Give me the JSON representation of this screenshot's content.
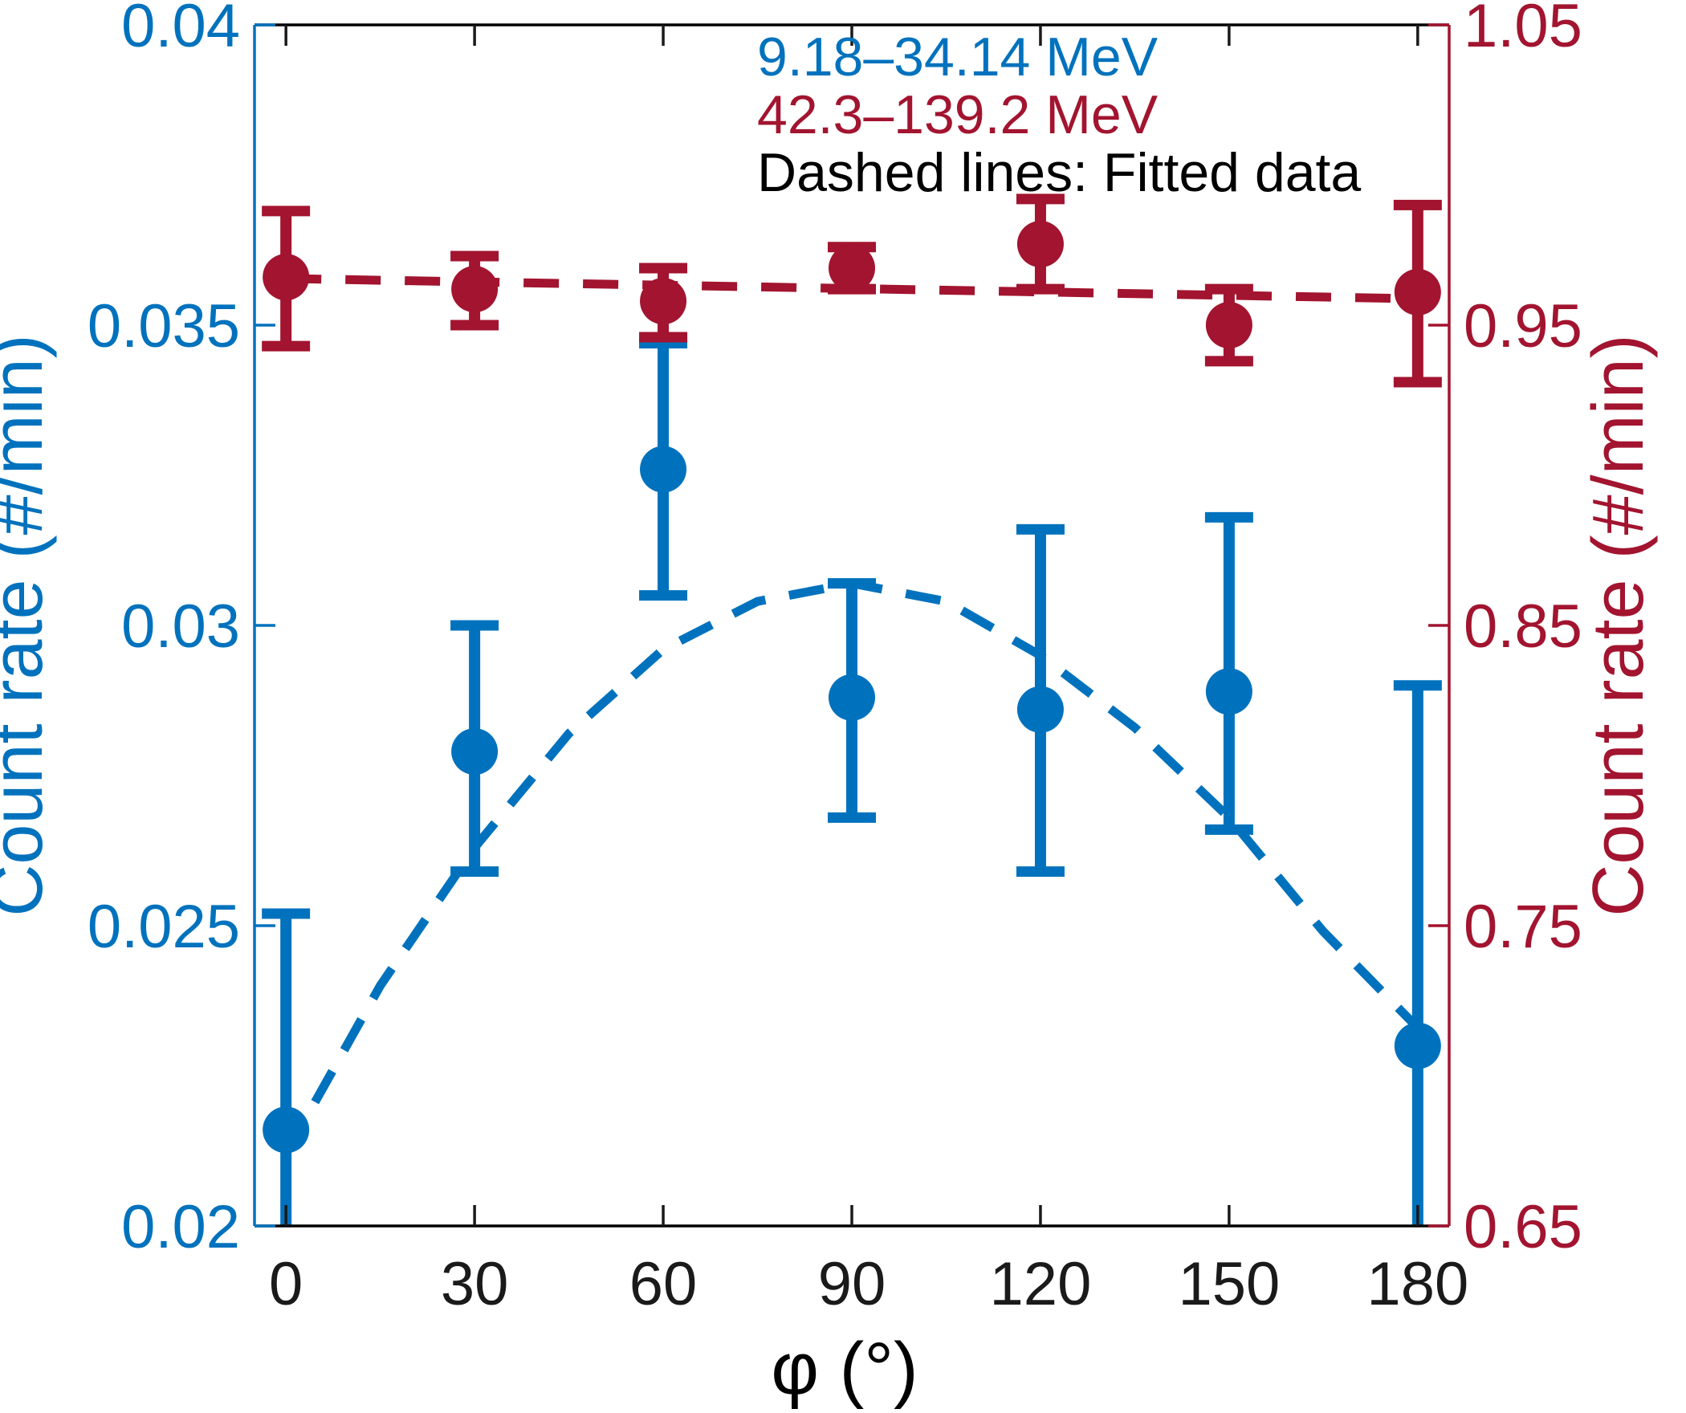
{
  "figure": {
    "background": "#ffffff",
    "description": "Dual-axis errorbar plot of count rate versus azimuthal angle phi"
  },
  "chart_data": {
    "type": "scatter",
    "subtype": "errorbar-dual-axis",
    "grid": false,
    "x_axis": {
      "label": "φ (°)",
      "lim": [
        -5,
        185
      ],
      "ticks": [
        0,
        30,
        60,
        90,
        120,
        150,
        180
      ],
      "tick_labels": [
        "0",
        "30",
        "60",
        "90",
        "120",
        "150",
        "180"
      ],
      "color": "#1a1a1a"
    },
    "left_axis": {
      "label": "Count rate (#/min)",
      "color": "#0072BD",
      "lim": [
        0.02,
        0.04
      ],
      "ticks": [
        0.02,
        0.025,
        0.03,
        0.035,
        0.04
      ],
      "tick_labels": [
        "0.02",
        "0.025",
        "0.03",
        "0.035",
        "0.04"
      ]
    },
    "right_axis": {
      "label": "Count rate (#/min)",
      "color": "#A2142F",
      "lim": [
        0.65,
        1.05
      ],
      "ticks": [
        0.65,
        0.75,
        0.85,
        0.95,
        1.05
      ],
      "tick_labels": [
        "0.65",
        "0.75",
        "0.85",
        "0.95",
        "1.05"
      ]
    },
    "legend": {
      "position": "top-center-inside",
      "entries": [
        {
          "text": "9.18–34.14 MeV",
          "color": "#0072BD"
        },
        {
          "text": "42.3–139.2 MeV",
          "color": "#A2142F"
        },
        {
          "text": "Dashed lines: Fitted data",
          "color": "#000000"
        }
      ]
    },
    "series": [
      {
        "name": "9.18–34.14 MeV",
        "axis": "left",
        "color": "#0072BD",
        "marker": "circle",
        "points": [
          {
            "x": 0,
            "y": 0.0216,
            "y_upper": 0.0252,
            "y_lower": null
          },
          {
            "x": 30,
            "y": 0.0279,
            "y_upper": 0.03,
            "y_lower": 0.0259
          },
          {
            "x": 60,
            "y": 0.0326,
            "y_upper": 0.0347,
            "y_lower": 0.0305
          },
          {
            "x": 90,
            "y": 0.0288,
            "y_upper": 0.0307,
            "y_lower": 0.0268
          },
          {
            "x": 120,
            "y": 0.0286,
            "y_upper": 0.0316,
            "y_lower": 0.0259
          },
          {
            "x": 150,
            "y": 0.0289,
            "y_upper": 0.0318,
            "y_lower": 0.0266
          },
          {
            "x": 180,
            "y": 0.023,
            "y_upper": 0.029,
            "y_lower": null
          }
        ]
      },
      {
        "name": "42.3–139.2 MeV",
        "axis": "right",
        "color": "#A2142F",
        "marker": "circle",
        "points": [
          {
            "x": 0,
            "y": 0.966,
            "y_upper": 0.988,
            "y_lower": 0.943
          },
          {
            "x": 30,
            "y": 0.962,
            "y_upper": 0.973,
            "y_lower": 0.95
          },
          {
            "x": 60,
            "y": 0.958,
            "y_upper": 0.969,
            "y_lower": 0.946
          },
          {
            "x": 90,
            "y": 0.969,
            "y_upper": 0.976,
            "y_lower": 0.962
          },
          {
            "x": 120,
            "y": 0.977,
            "y_upper": 0.992,
            "y_lower": 0.962
          },
          {
            "x": 150,
            "y": 0.95,
            "y_upper": 0.962,
            "y_lower": 0.938
          },
          {
            "x": 180,
            "y": 0.961,
            "y_upper": 0.99,
            "y_lower": 0.931
          }
        ]
      }
    ],
    "fits": [
      {
        "name": "fit 9.18–34.14 MeV",
        "axis": "left",
        "color": "#0072BD",
        "style": "dashed",
        "points": [
          [
            0,
            0.0212
          ],
          [
            15,
            0.024
          ],
          [
            30,
            0.0263
          ],
          [
            45,
            0.0282
          ],
          [
            60,
            0.0296
          ],
          [
            75,
            0.0304
          ],
          [
            90,
            0.0307
          ],
          [
            105,
            0.0304
          ],
          [
            120,
            0.0295
          ],
          [
            135,
            0.0283
          ],
          [
            150,
            0.0268
          ],
          [
            165,
            0.0249
          ],
          [
            180,
            0.0233
          ]
        ]
      },
      {
        "name": "fit 42.3–139.2 MeV",
        "axis": "right",
        "color": "#A2142F",
        "style": "dashed",
        "points": [
          [
            0,
            0.9655
          ],
          [
            90,
            0.9622
          ],
          [
            180,
            0.9588
          ]
        ]
      }
    ]
  }
}
